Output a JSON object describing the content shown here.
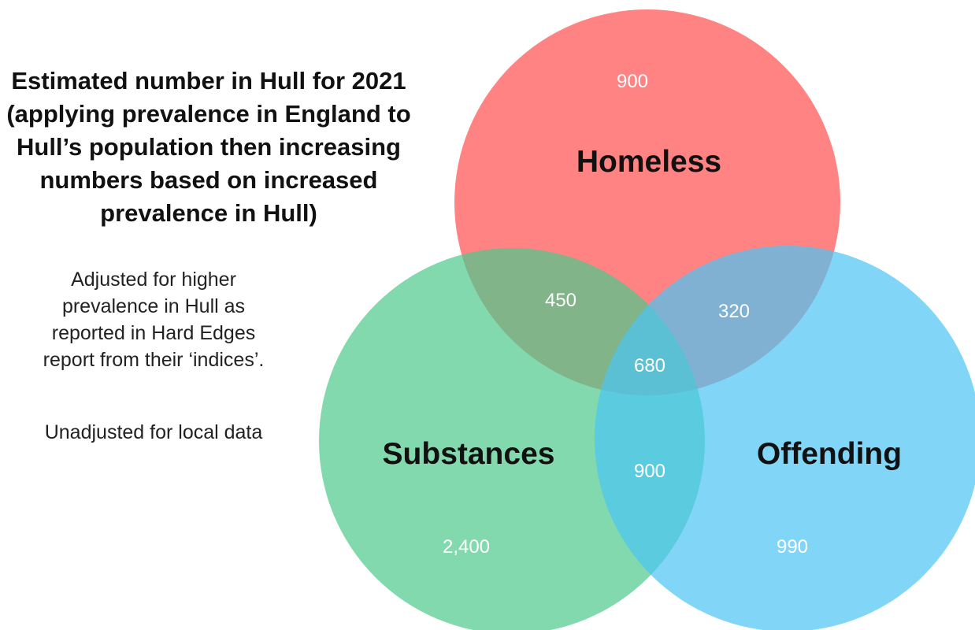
{
  "title": "Estimated number in Hull for 2021\n(applying prevalence in England to\nHull’s population then increasing\nnumbers based on increased\nprevalence in Hull)",
  "note": "Adjusted for higher\nprevalence in Hull as\nreported in Hard Edges\nreport from their ‘indices’.",
  "note2": "Unadjusted for local data",
  "sets": {
    "homeless": {
      "label": "Homeless",
      "color": "#ff5a5a"
    },
    "substances": {
      "label": "Substances",
      "color": "#4cc98a"
    },
    "offending": {
      "label": "Offending",
      "color": "#4cc4f4"
    }
  },
  "regions": {
    "homeless_only": "900",
    "substances_only": "2,400",
    "offending_only": "990",
    "homeless_substances": "450",
    "homeless_offending": "320",
    "substances_offending": "900",
    "all_three": "680"
  }
}
